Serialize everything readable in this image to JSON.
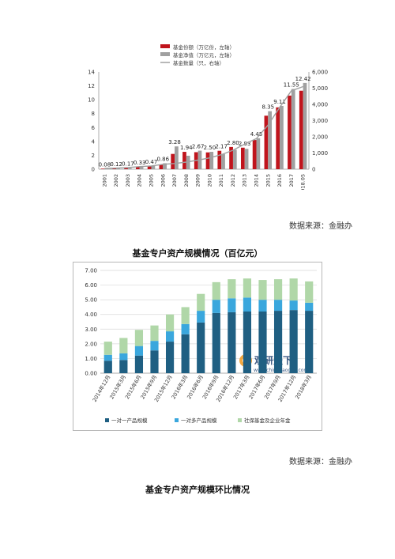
{
  "chart_data": [
    {
      "type": "bar",
      "categories": [
        "2001",
        "2002",
        "2003",
        "2004",
        "2005",
        "2006",
        "2007",
        "2008",
        "2009",
        "2010",
        "2011",
        "2012",
        "2013",
        "2014",
        "2015",
        "2016",
        "2017",
        "2018.05"
      ],
      "series": [
        {
          "name": "基金份额（万亿份，左轴）",
          "kind": "bar",
          "axis": "left",
          "color": "#c0141c",
          "values": [
            0.08,
            0.12,
            0.17,
            0.33,
            0.47,
            0.62,
            2.2,
            2.5,
            2.45,
            2.42,
            2.65,
            3.2,
            3.1,
            4.2,
            7.7,
            8.9,
            10.6,
            11.3
          ]
        },
        {
          "name": "基金净值（万亿元，左轴）",
          "kind": "bar",
          "axis": "left",
          "color": "#a0a0a0",
          "values": [
            0.08,
            0.12,
            0.17,
            0.33,
            0.47,
            0.86,
            3.28,
            1.94,
            2.67,
            2.5,
            2.17,
            2.8,
            2.93,
            4.45,
            8.35,
            9.11,
            11.55,
            12.42
          ]
        },
        {
          "name": "基金数量（只，右轴）",
          "kind": "line",
          "axis": "right",
          "color": "#a0a0a0",
          "values": [
            50,
            70,
            100,
            160,
            200,
            300,
            350,
            440,
            560,
            700,
            900,
            1170,
            1550,
            1890,
            2720,
            3820,
            4840,
            5100
          ]
        }
      ],
      "labels": [
        "0.08",
        "0.12",
        "0.17",
        "0.33",
        "0.47",
        "0.86",
        "3.28",
        "1.94",
        "2.67",
        "2.50",
        "2.17",
        "2.80",
        "2.93",
        "4.45",
        "8.35",
        "9.11",
        "11.55",
        "12.42"
      ],
      "ylim_left": [
        0,
        14
      ],
      "yticks_left": [
        "0",
        "2",
        "4",
        "6",
        "8",
        "10",
        "12",
        "14"
      ],
      "ylim_right": [
        0,
        6000
      ],
      "yticks_right": [
        "0",
        "1,000",
        "2,000",
        "3,000",
        "4,000",
        "5,000",
        "6,000"
      ],
      "legend_position": "top-center",
      "grid": false
    },
    {
      "type": "bar",
      "stacked": true,
      "categories": [
        "2014年12月",
        "2015年3月",
        "2015年6月",
        "2015年9月",
        "2015年12月",
        "2016年3月",
        "2016年6月",
        "2016年9月",
        "2016年12月",
        "2017年3月",
        "2017年6月",
        "2017年9月",
        "2017年12月",
        "2018年3月"
      ],
      "series": [
        {
          "name": "一对一产品规模",
          "color": "#1f5f82",
          "values": [
            0.85,
            0.9,
            1.2,
            1.55,
            2.15,
            2.65,
            3.45,
            4.1,
            4.15,
            4.2,
            4.2,
            4.25,
            4.3,
            4.25
          ]
        },
        {
          "name": "一对多产品规模",
          "color": "#3aa7dd",
          "values": [
            0.4,
            0.45,
            0.65,
            0.65,
            0.7,
            0.7,
            0.8,
            0.9,
            0.95,
            0.95,
            0.8,
            0.75,
            0.65,
            0.55
          ]
        },
        {
          "name": "社保基金及企业年金",
          "color": "#b0d7a8",
          "values": [
            0.9,
            1.05,
            1.1,
            1.05,
            1.15,
            1.15,
            1.15,
            1.2,
            1.3,
            1.3,
            1.35,
            1.4,
            1.5,
            1.45
          ]
        }
      ],
      "ylim": [
        0,
        7
      ],
      "yticks": [
        "0.00",
        "1.00",
        "2.00",
        "3.00",
        "4.00",
        "5.00",
        "6.00",
        "7.00"
      ],
      "legend_position": "bottom",
      "grid": true,
      "watermark": {
        "brand": "观研天下",
        "url": "www.chinabaogao.com"
      }
    }
  ],
  "source1": "数据来源：金融办",
  "caption1": "基金专户资产规模情况（百亿元）",
  "source2": "数据来源：金融办",
  "caption2": "基金专户资产规模环比情况"
}
